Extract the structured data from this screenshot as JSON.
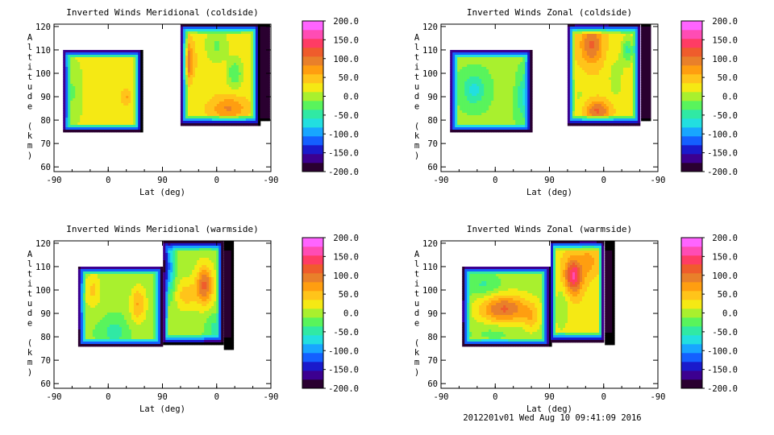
{
  "footer": "2012201v01 Wed Aug 10 09:41:09 2016",
  "colorbar": {
    "labels": [
      "200.0",
      "150.0",
      "100.0",
      "50.0",
      "0.0",
      "-50.0",
      "-100.0",
      "-150.0",
      "-200.0"
    ],
    "range": [
      -200,
      200
    ],
    "colors": [
      "#2a0030",
      "#3c0090",
      "#1a1acc",
      "#1460ff",
      "#18a6ff",
      "#22dfe0",
      "#30e9a4",
      "#59f45c",
      "#a9f02e",
      "#f5e914",
      "#ffc41a",
      "#ff9e10",
      "#e9802a",
      "#ef5c2c",
      "#ff3c64",
      "#ff4cb4",
      "#ff64ff"
    ]
  },
  "chart_data": [
    {
      "type": "heatmap",
      "title": "Inverted Winds Meridional (coldside)",
      "xlabel": "Lat (deg)",
      "ylabel": "Altitude (km)",
      "xticks": [
        "-90",
        "0",
        "90",
        "0",
        "-90"
      ],
      "yticks": [
        "120",
        "110",
        "100",
        "90",
        "80",
        "70",
        "60"
      ],
      "ylim": [
        58,
        121
      ],
      "zlim": [
        -200,
        200
      ],
      "blocks": [
        {
          "x": [
            -75,
            55
          ],
          "y": [
            75,
            110
          ],
          "base": 15,
          "edge": -205,
          "blobs": [
            [
              -20,
              93,
              18,
              6,
              15
            ],
            [
              30,
              90,
              10,
              4,
              45
            ],
            [
              -60,
              92,
              14,
              10,
              -30
            ]
          ]
        },
        {
          "x": [
            120,
            250
          ],
          "y": [
            78,
            121
          ],
          "base": 25,
          "edge": -205,
          "blobs": [
            [
              130,
              105,
              12,
              8,
              90
            ],
            [
              180,
              112,
              18,
              7,
              -40
            ],
            [
              210,
              100,
              12,
              6,
              -60
            ],
            [
              200,
              85,
              30,
              5,
              60
            ],
            [
              145,
              90,
              10,
              10,
              -10
            ]
          ]
        },
        {
          "x": [
            252,
            267
          ],
          "y": [
            80,
            121
          ],
          "base": -180,
          "edge": -205,
          "blobs": []
        }
      ]
    },
    {
      "type": "heatmap",
      "title": "Inverted Winds Zonal (coldside)",
      "xlabel": "Lat (deg)",
      "ylabel": "Altitude (km)",
      "xticks": [
        "-90",
        "0",
        "90",
        "0",
        "-90"
      ],
      "yticks": [
        "120",
        "110",
        "100",
        "90",
        "80",
        "70",
        "60"
      ],
      "ylim": [
        58,
        121
      ],
      "zlim": [
        -200,
        200
      ],
      "blocks": [
        {
          "x": [
            -75,
            60
          ],
          "y": [
            75,
            110
          ],
          "base": -10,
          "edge": -205,
          "blobs": [
            [
              -35,
              93,
              18,
              6,
              -60
            ],
            [
              20,
              96,
              12,
              8,
              10
            ],
            [
              45,
              90,
              10,
              8,
              -50
            ]
          ]
        },
        {
          "x": [
            120,
            240
          ],
          "y": [
            78,
            121
          ],
          "base": 30,
          "edge": -205,
          "blobs": [
            [
              160,
              112,
              18,
              8,
              80
            ],
            [
              140,
              90,
              12,
              8,
              -20
            ],
            [
              200,
              98,
              14,
              10,
              -30
            ],
            [
              220,
              110,
              10,
              6,
              -70
            ],
            [
              170,
              84,
              20,
              4,
              80
            ]
          ]
        },
        {
          "x": [
            242,
            258
          ],
          "y": [
            80,
            121
          ],
          "base": -180,
          "edge": -205,
          "blobs": []
        }
      ]
    },
    {
      "type": "heatmap",
      "title": "Inverted Winds Meridional (warmside)",
      "xlabel": "Lat (deg)",
      "ylabel": "Altitude (km)",
      "xticks": [
        "-90",
        "0",
        "90",
        "0",
        "-90"
      ],
      "yticks": [
        "120",
        "110",
        "100",
        "90",
        "80",
        "70",
        "60"
      ],
      "ylim": [
        58,
        121
      ],
      "zlim": [
        -200,
        200
      ],
      "blocks": [
        {
          "x": [
            -50,
            90
          ],
          "y": [
            76,
            110
          ],
          "base": -10,
          "edge": -205,
          "blobs": [
            [
              -25,
              100,
              14,
              8,
              50
            ],
            [
              50,
              94,
              14,
              8,
              70
            ],
            [
              10,
              82,
              20,
              5,
              -40
            ],
            [
              -45,
              96,
              6,
              8,
              60
            ]
          ]
        },
        {
          "x": [
            91,
            190
          ],
          "y": [
            77,
            121
          ],
          "base": 0,
          "edge": -205,
          "blobs": [
            [
              100,
              110,
              10,
              12,
              -110
            ],
            [
              160,
              102,
              14,
              8,
              110
            ],
            [
              130,
              98,
              18,
              6,
              50
            ],
            [
              175,
              84,
              14,
              6,
              -40
            ]
          ]
        },
        {
          "x": [
            192,
            205
          ],
          "y": [
            75,
            121
          ],
          "base": -200,
          "edge": -205,
          "blobs": []
        }
      ]
    },
    {
      "type": "heatmap",
      "title": "Inverted Winds Zonal (warmside)",
      "xlabel": "Lat (deg)",
      "ylabel": "Altitude (km)",
      "xticks": [
        "-90",
        "0",
        "90",
        "0",
        "-90"
      ],
      "yticks": [
        "120",
        "110",
        "100",
        "90",
        "80",
        "70",
        "60"
      ],
      "ylim": [
        58,
        121
      ],
      "zlim": [
        -200,
        200
      ],
      "blocks": [
        {
          "x": [
            -55,
            90
          ],
          "y": [
            76,
            110
          ],
          "base": 0,
          "edge": -205,
          "blobs": [
            [
              15,
              92,
              40,
              6,
              110
            ],
            [
              -20,
              102,
              30,
              5,
              -40
            ],
            [
              60,
              88,
              14,
              6,
              40
            ],
            [
              0,
              82,
              40,
              4,
              -20
            ]
          ]
        },
        {
          "x": [
            92,
            180
          ],
          "y": [
            78,
            121
          ],
          "base": 30,
          "edge": -205,
          "blobs": [
            [
              130,
              106,
              14,
              7,
              130
            ],
            [
              155,
              112,
              14,
              6,
              40
            ],
            [
              110,
              92,
              12,
              10,
              -40
            ],
            [
              165,
              90,
              14,
              8,
              -10
            ]
          ]
        },
        {
          "x": [
            182,
            195
          ],
          "y": [
            77,
            121
          ],
          "base": -200,
          "edge": -205,
          "blobs": []
        }
      ]
    }
  ]
}
